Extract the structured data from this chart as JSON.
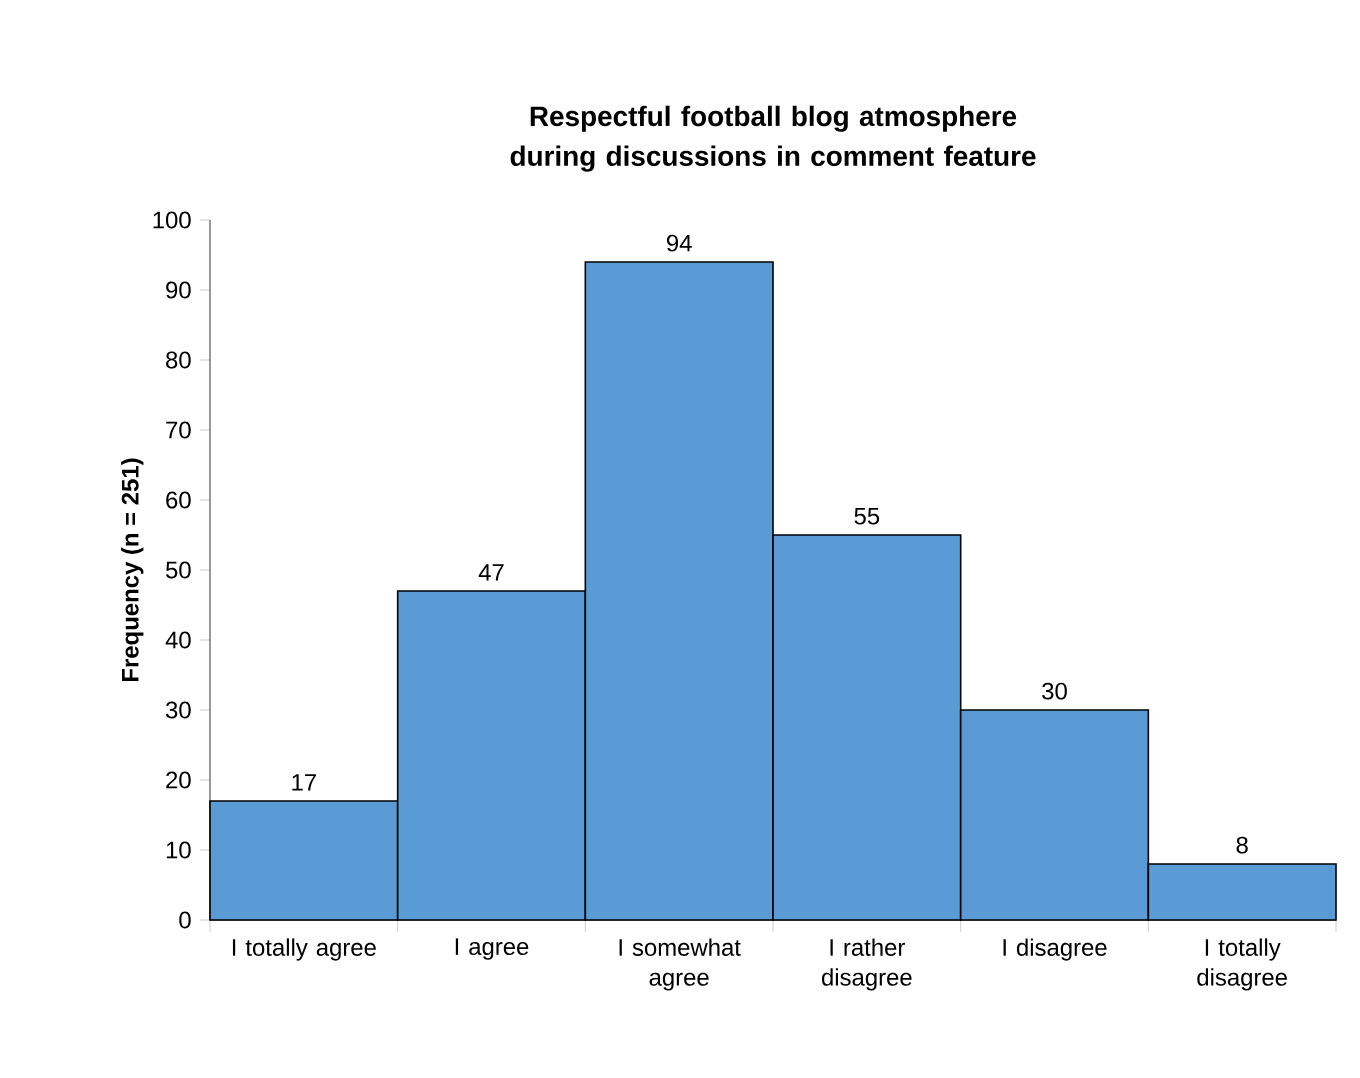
{
  "chart_data": {
    "type": "bar",
    "title": "Respectful football blog atmosphere during discussions in comment feature",
    "ylabel": "Frequency (n = 251)",
    "categories": [
      "I totally agree",
      "I agree",
      "I somewhat agree",
      "I rather disagree",
      "I disagree",
      "I totally disagree"
    ],
    "values": [
      17,
      47,
      94,
      55,
      30,
      8
    ],
    "color": "#5b9bd5",
    "ylim": [
      0,
      100
    ],
    "yticks": [
      0,
      10,
      20,
      30,
      40,
      50,
      60,
      70,
      80,
      90,
      100
    ],
    "grid": false,
    "data_labels": true
  }
}
